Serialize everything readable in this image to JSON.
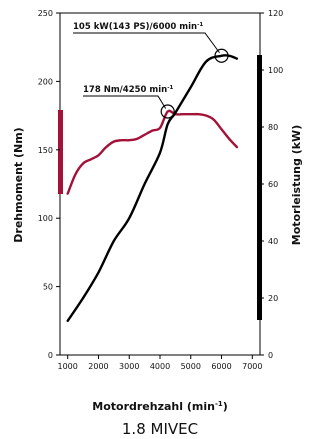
{
  "chart_data": {
    "type": "line",
    "subtitle": "1.8 MIVEC",
    "xlabel": "Motordrehzahl (min-1)",
    "ylabel_left": "Drehmoment (Nm)",
    "ylabel_right": "Motorleistung (kW)",
    "xlim": [
      750,
      7250
    ],
    "ylim_left": [
      0,
      250
    ],
    "ylim_right": [
      0,
      120
    ],
    "x_ticks": [
      1000,
      2000,
      3000,
      4000,
      5000,
      6000,
      7000
    ],
    "y_ticks_left": [
      0,
      50,
      100,
      150,
      200,
      250
    ],
    "y_ticks_right": [
      0,
      20,
      40,
      60,
      80,
      100,
      120
    ],
    "grid": false,
    "series": [
      {
        "axis": "left",
        "color": "#a3123a",
        "x": [
          1000,
          1250,
          1500,
          1750,
          2000,
          2250,
          2500,
          2750,
          3000,
          3250,
          3500,
          3750,
          4000,
          4250,
          4500,
          4750,
          5000,
          5250,
          5500,
          5750,
          6000,
          6250,
          6500
        ],
        "values": [
          118,
          132,
          140,
          143,
          146,
          152,
          156,
          157,
          157,
          158,
          161,
          164,
          166,
          178,
          176,
          176,
          176,
          176,
          175,
          172,
          165,
          158,
          152
        ]
      },
      {
        "axis": "right",
        "color": "#000000",
        "x": [
          1000,
          1500,
          2000,
          2500,
          3000,
          3500,
          4000,
          4250,
          4500,
          5000,
          5500,
          6000,
          6250,
          6500
        ],
        "values": [
          12,
          20,
          29,
          40,
          48,
          60,
          71,
          81,
          85,
          94,
          103,
          105,
          105,
          104
        ]
      }
    ],
    "annotations": [
      {
        "label": "105 kW(143 PS)/6000 min",
        "sup": "-1",
        "x": 6000,
        "value": 105,
        "axis": "right"
      },
      {
        "label": "178 Nm/4250 min",
        "sup": "-1",
        "x": 4250,
        "value": 178,
        "axis": "left"
      }
    ],
    "colors": {
      "torque_bar": "#a3123a",
      "power_bar": "#000000"
    }
  }
}
